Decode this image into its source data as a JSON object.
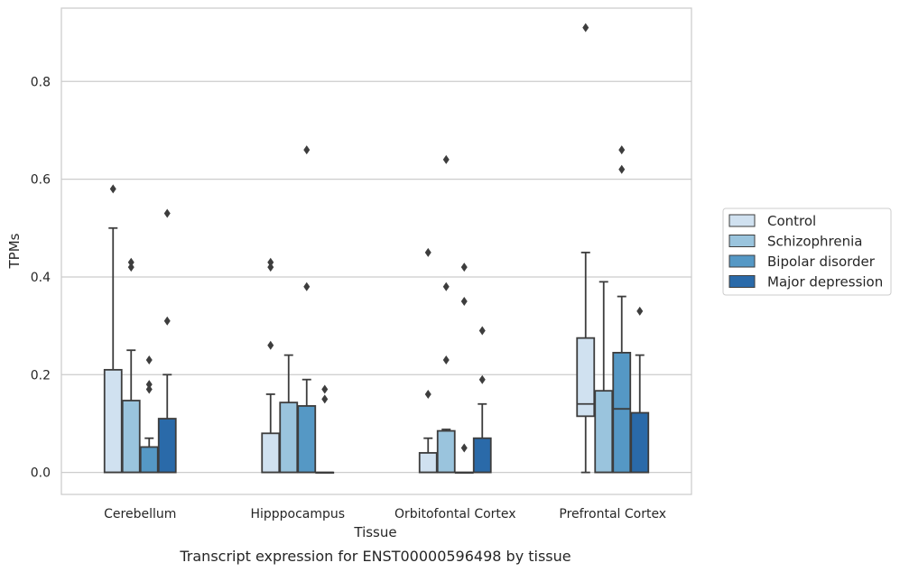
{
  "chart_data": {
    "type": "box",
    "xlabel": "Tissue",
    "ylabel": "TPMs",
    "caption": "Transcript expression for ENST00000596498 by tissue",
    "ylim": [
      -0.045,
      0.95
    ],
    "yticks": [
      0.0,
      0.2,
      0.4,
      0.6,
      0.8
    ],
    "ytick_labels": [
      "0.0",
      "0.2",
      "0.4",
      "0.6",
      "0.8"
    ],
    "grid": "horizontal",
    "legend_position": "outside-right",
    "categories": [
      "Cerebellum",
      "Hipppocampus",
      "Orbitofontal Cortex",
      "Prefrontal Cortex"
    ],
    "series": [
      {
        "name": "Control",
        "color": "#d0e1f0",
        "boxes": [
          {
            "whisker_low": 0.0,
            "q1": 0.0,
            "median": 0.0,
            "q3": 0.21,
            "whisker_high": 0.5,
            "outliers": [
              0.58
            ]
          },
          {
            "whisker_low": 0.0,
            "q1": 0.0,
            "median": 0.0,
            "q3": 0.08,
            "whisker_high": 0.16,
            "outliers": [
              0.26,
              0.42,
              0.43
            ]
          },
          {
            "whisker_low": 0.0,
            "q1": 0.0,
            "median": 0.0,
            "q3": 0.04,
            "whisker_high": 0.07,
            "outliers": [
              0.16,
              0.45
            ]
          },
          {
            "whisker_low": 0.0,
            "q1": 0.115,
            "median": 0.14,
            "q3": 0.275,
            "whisker_high": 0.45,
            "outliers": [
              0.91
            ]
          }
        ]
      },
      {
        "name": "Schizophrenia",
        "color": "#9ac4dd",
        "boxes": [
          {
            "whisker_low": 0.0,
            "q1": 0.0,
            "median": 0.0,
            "q3": 0.147,
            "whisker_high": 0.25,
            "outliers": [
              0.42,
              0.43
            ]
          },
          {
            "whisker_low": 0.0,
            "q1": 0.0,
            "median": 0.0,
            "q3": 0.143,
            "whisker_high": 0.24,
            "outliers": []
          },
          {
            "whisker_low": 0.0,
            "q1": 0.0,
            "median": 0.0,
            "q3": 0.085,
            "whisker_high": 0.088,
            "outliers": [
              0.23,
              0.38,
              0.64
            ]
          },
          {
            "whisker_low": 0.0,
            "q1": 0.0,
            "median": 0.0,
            "q3": 0.167,
            "whisker_high": 0.39,
            "outliers": []
          }
        ]
      },
      {
        "name": "Bipolar disorder",
        "color": "#5598c5",
        "boxes": [
          {
            "whisker_low": 0.0,
            "q1": 0.0,
            "median": 0.0,
            "q3": 0.052,
            "whisker_high": 0.07,
            "outliers": [
              0.17,
              0.18,
              0.23
            ]
          },
          {
            "whisker_low": 0.0,
            "q1": 0.0,
            "median": 0.0,
            "q3": 0.136,
            "whisker_high": 0.19,
            "outliers": [
              0.38,
              0.66
            ]
          },
          {
            "whisker_low": 0.0,
            "q1": 0.0,
            "median": 0.0,
            "q3": 0.0,
            "whisker_high": 0.0,
            "outliers": [
              0.05,
              0.35,
              0.42
            ]
          },
          {
            "whisker_low": 0.0,
            "q1": 0.0,
            "median": 0.13,
            "q3": 0.245,
            "whisker_high": 0.36,
            "outliers": [
              0.62,
              0.66
            ]
          }
        ]
      },
      {
        "name": "Major depression",
        "color": "#2a6aa9",
        "boxes": [
          {
            "whisker_low": 0.0,
            "q1": 0.0,
            "median": 0.0,
            "q3": 0.11,
            "whisker_high": 0.2,
            "outliers": [
              0.31,
              0.53
            ]
          },
          {
            "whisker_low": 0.0,
            "q1": 0.0,
            "median": 0.0,
            "q3": 0.0,
            "whisker_high": 0.0,
            "outliers": [
              0.15,
              0.17
            ]
          },
          {
            "whisker_low": 0.0,
            "q1": 0.0,
            "median": 0.0,
            "q3": 0.07,
            "whisker_high": 0.14,
            "outliers": [
              0.19,
              0.29
            ]
          },
          {
            "whisker_low": 0.0,
            "q1": 0.0,
            "median": 0.0,
            "q3": 0.122,
            "whisker_high": 0.24,
            "outliers": [
              0.33
            ]
          }
        ]
      }
    ]
  }
}
